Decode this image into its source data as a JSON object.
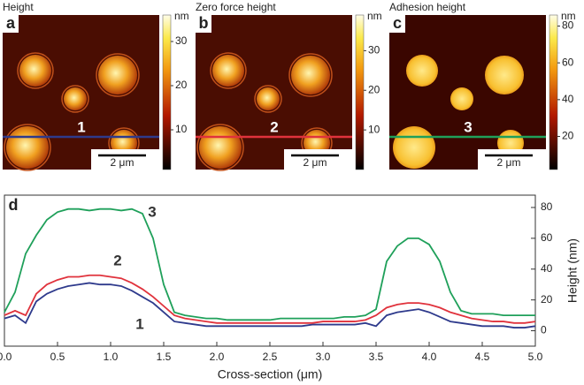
{
  "chart_data": [
    {
      "type": "image",
      "title": "Height",
      "panel": "a",
      "line_label": "1",
      "line_color": "#2e3a8c",
      "scale_bar": "2 μm",
      "colorbar_unit": "nm",
      "rings": true,
      "clim": [
        1,
        36
      ],
      "cticks": [
        10,
        20,
        30
      ]
    },
    {
      "type": "image",
      "title": "Zero force height",
      "panel": "b",
      "line_label": "2",
      "line_color": "#e0323c",
      "scale_bar": "2 μm",
      "colorbar_unit": "nm",
      "rings": true,
      "clim": [
        0,
        39
      ],
      "cticks": [
        10,
        20,
        30
      ]
    },
    {
      "type": "image",
      "title": "Adhesion height",
      "panel": "c",
      "line_label": "3",
      "line_color": "#1fa05a",
      "scale_bar": "2 μm",
      "colorbar_unit": "nm",
      "rings": false,
      "clim": [
        2,
        86
      ],
      "cticks": [
        20,
        40,
        60,
        80
      ]
    },
    {
      "type": "line",
      "panel": "d",
      "xlabel": "Cross-section (μm)",
      "ylabel": "Height (nm)",
      "x": [
        0,
        0.1,
        0.2,
        0.3,
        0.4,
        0.5,
        0.6,
        0.7,
        0.8,
        0.9,
        1.0,
        1.1,
        1.2,
        1.3,
        1.4,
        1.5,
        1.6,
        1.7,
        1.8,
        1.9,
        2.0,
        2.1,
        2.2,
        2.3,
        2.4,
        2.5,
        2.6,
        2.7,
        2.8,
        2.9,
        3.0,
        3.1,
        3.2,
        3.3,
        3.4,
        3.5,
        3.6,
        3.7,
        3.8,
        3.9,
        4.0,
        4.1,
        4.2,
        4.3,
        4.4,
        4.5,
        4.6,
        4.7,
        4.8,
        4.9,
        5.0
      ],
      "series": [
        {
          "name": "1",
          "color": "#2e3a8c",
          "values": [
            8,
            10,
            5,
            19,
            24,
            27,
            29,
            30,
            31,
            30,
            30,
            29,
            26,
            22,
            18,
            12,
            6,
            5,
            4,
            3,
            3,
            3,
            3,
            3,
            3,
            3,
            3,
            3,
            3,
            4,
            4,
            4,
            4,
            4,
            5,
            3,
            10,
            12,
            13,
            14,
            12,
            9,
            6,
            5,
            4,
            3,
            3,
            3,
            2,
            2,
            3
          ]
        },
        {
          "name": "2",
          "color": "#e0323c",
          "values": [
            10,
            13,
            10,
            24,
            30,
            33,
            35,
            35,
            36,
            36,
            35,
            34,
            31,
            27,
            22,
            16,
            10,
            8,
            7,
            6,
            5,
            5,
            5,
            5,
            5,
            5,
            5,
            5,
            5,
            5,
            6,
            6,
            6,
            6,
            7,
            10,
            15,
            17,
            18,
            18,
            17,
            15,
            12,
            10,
            8,
            7,
            6,
            6,
            5,
            5,
            6
          ]
        },
        {
          "name": "3",
          "color": "#1fa05a",
          "values": [
            12,
            25,
            50,
            62,
            72,
            77,
            79,
            79,
            78,
            79,
            79,
            78,
            79,
            76,
            60,
            30,
            12,
            10,
            9,
            8,
            8,
            7,
            7,
            7,
            7,
            7,
            8,
            8,
            8,
            8,
            8,
            8,
            9,
            9,
            10,
            14,
            45,
            55,
            60,
            60,
            56,
            45,
            25,
            13,
            11,
            11,
            11,
            10,
            10,
            10,
            10
          ]
        }
      ],
      "xlim": [
        0,
        5
      ],
      "ylim": [
        -10,
        88
      ],
      "xticks": [
        {
          "value": 0,
          "label": "0.0"
        },
        {
          "value": 0.5,
          "label": "0.5"
        },
        {
          "value": 1,
          "label": "1.0"
        },
        {
          "value": 1.5,
          "label": "1.5"
        },
        {
          "value": 2,
          "label": "2.0"
        },
        {
          "value": 2.5,
          "label": "2.5"
        },
        {
          "value": 3,
          "label": "3.0"
        },
        {
          "value": 3.5,
          "label": "3.5"
        },
        {
          "value": 4,
          "label": "4.0"
        },
        {
          "value": 4.5,
          "label": "4.5"
        },
        {
          "value": 5,
          "label": "5.0"
        }
      ],
      "yticks": [
        0,
        20,
        40,
        60,
        80
      ]
    }
  ]
}
